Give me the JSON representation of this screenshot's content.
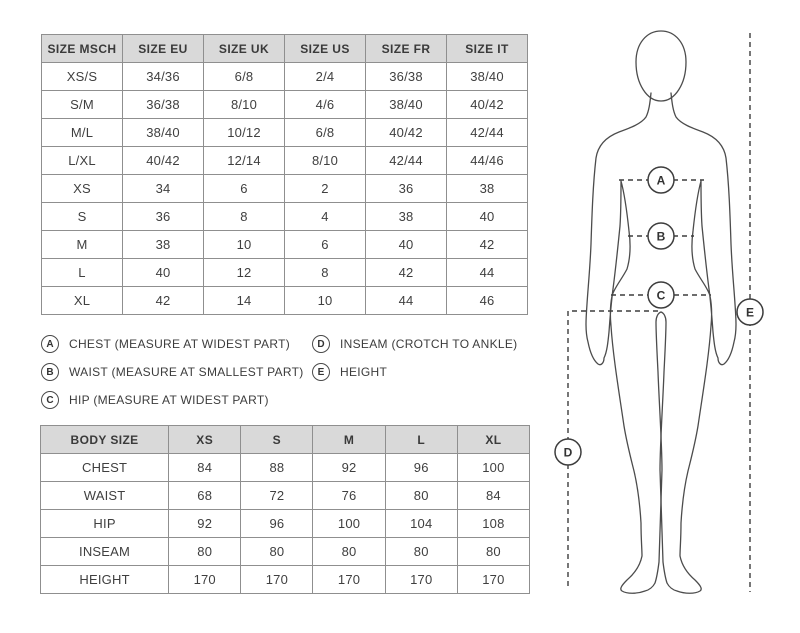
{
  "chart_data": [
    {
      "type": "table",
      "name": "size-conversion",
      "columns": [
        "SIZE MSCH",
        "SIZE EU",
        "SIZE UK",
        "SIZE US",
        "SIZE FR",
        "SIZE IT"
      ],
      "rows": [
        [
          "XS/S",
          "34/36",
          "6/8",
          "2/4",
          "36/38",
          "38/40"
        ],
        [
          "S/M",
          "36/38",
          "8/10",
          "4/6",
          "38/40",
          "40/42"
        ],
        [
          "M/L",
          "38/40",
          "10/12",
          "6/8",
          "40/42",
          "42/44"
        ],
        [
          "L/XL",
          "40/42",
          "12/14",
          "8/10",
          "42/44",
          "44/46"
        ],
        [
          "XS",
          "34",
          "6",
          "2",
          "36",
          "38"
        ],
        [
          "S",
          "36",
          "8",
          "4",
          "38",
          "40"
        ],
        [
          "M",
          "38",
          "10",
          "6",
          "40",
          "42"
        ],
        [
          "L",
          "40",
          "12",
          "8",
          "42",
          "44"
        ],
        [
          "XL",
          "42",
          "14",
          "10",
          "44",
          "46"
        ]
      ]
    },
    {
      "type": "table",
      "name": "body-measurements",
      "columns": [
        "BODY SIZE",
        "XS",
        "S",
        "M",
        "L",
        "XL"
      ],
      "rows": [
        [
          "CHEST",
          "84",
          "88",
          "92",
          "96",
          "100"
        ],
        [
          "WAIST",
          "68",
          "72",
          "76",
          "80",
          "84"
        ],
        [
          "HIP",
          "92",
          "96",
          "100",
          "104",
          "108"
        ],
        [
          "INSEAM",
          "80",
          "80",
          "80",
          "80",
          "80"
        ],
        [
          "HEIGHT",
          "170",
          "170",
          "170",
          "170",
          "170"
        ]
      ]
    }
  ],
  "legend": {
    "items": [
      {
        "letter": "A",
        "label": "CHEST (MEASURE AT WIDEST PART)"
      },
      {
        "letter": "B",
        "label": "WAIST (MEASURE AT SMALLEST PART)"
      },
      {
        "letter": "C",
        "label": "HIP (MEASURE AT WIDEST PART)"
      },
      {
        "letter": "D",
        "label": "INSEAM (CROTCH TO ANKLE)"
      },
      {
        "letter": "E",
        "label": "HEIGHT"
      }
    ]
  },
  "figure": {
    "markers": [
      "A",
      "B",
      "C",
      "D",
      "E"
    ]
  },
  "colors": {
    "table_header_bg": "#d9d9d9",
    "table_border": "#8f8f8f",
    "text": "#3c3c3c",
    "figure_line": "#4c4c4c"
  }
}
